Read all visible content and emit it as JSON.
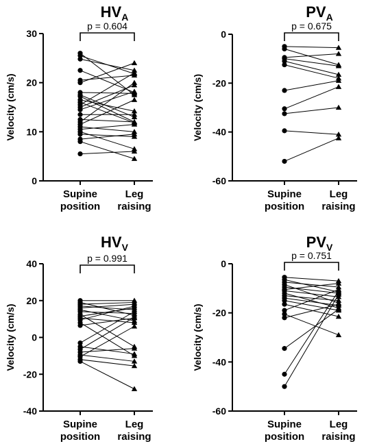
{
  "chart_data": [
    {
      "type": "scatter",
      "title": "HV",
      "title_subscript": "A",
      "ylabel": "Velocity (cm/s)",
      "ylim": [
        0,
        30
      ],
      "yticks": [
        "0",
        "10",
        "20",
        "30"
      ],
      "categories": [
        "Supine position",
        "Leg raising"
      ],
      "category_lines": [
        [
          "Supine",
          "position"
        ],
        [
          "Leg",
          "raising"
        ]
      ],
      "p_value": "p = 0.604",
      "marker_colors": [
        "#000000",
        "#000000"
      ],
      "pairs": [
        [
          26.0,
          17.5
        ],
        [
          25.5,
          21.8
        ],
        [
          24.8,
          22.5
        ],
        [
          22.5,
          18.0
        ],
        [
          20.5,
          21.5
        ],
        [
          20.0,
          24.0
        ],
        [
          18.0,
          17.8
        ],
        [
          17.5,
          13.0
        ],
        [
          17.2,
          12.0
        ],
        [
          16.5,
          14.2
        ],
        [
          16.0,
          11.8
        ],
        [
          15.5,
          22.0
        ],
        [
          15.0,
          19.5
        ],
        [
          14.5,
          18.2
        ],
        [
          13.5,
          13.5
        ],
        [
          12.5,
          12.0
        ],
        [
          12.0,
          20.0
        ],
        [
          11.5,
          16.5
        ],
        [
          11.0,
          10.0
        ],
        [
          10.5,
          11.5
        ],
        [
          10.0,
          6.5
        ],
        [
          9.5,
          9.0
        ],
        [
          8.5,
          9.5
        ],
        [
          8.0,
          4.5
        ],
        [
          5.5,
          6.0
        ]
      ]
    },
    {
      "type": "scatter",
      "title": "PV",
      "title_subscript": "A",
      "ylabel": "Velocity (cm/s)",
      "ylim": [
        -60,
        0
      ],
      "yticks": [
        "-60",
        "-40",
        "-20",
        "0"
      ],
      "categories": [
        "Supine position",
        "Leg raising"
      ],
      "category_lines": [
        [
          "Supine",
          "position"
        ],
        [
          "Leg",
          "raising"
        ]
      ],
      "p_value": "p = 0.675",
      "marker_colors": [
        "#000000",
        "#000000"
      ],
      "pairs": [
        [
          -5.0,
          -5.5
        ],
        [
          -6.0,
          -12.5
        ],
        [
          -9.5,
          -8.0
        ],
        [
          -10.0,
          -13.0
        ],
        [
          -11.0,
          -16.5
        ],
        [
          -12.5,
          -18.0
        ],
        [
          -23.0,
          -19.0
        ],
        [
          -30.5,
          -21.5
        ],
        [
          -32.5,
          -30.0
        ],
        [
          -39.5,
          -41.0
        ],
        [
          -52.0,
          -42.5
        ]
      ]
    },
    {
      "type": "scatter",
      "title": "HV",
      "title_subscript": "V",
      "ylabel": "Velocity (cm/s)",
      "ylim": [
        -40,
        40
      ],
      "yticks": [
        "-40",
        "-20",
        "0",
        "20",
        "40"
      ],
      "categories": [
        "Supine position",
        "Leg raising"
      ],
      "category_lines": [
        [
          "Supine",
          "position"
        ],
        [
          "Leg",
          "raising"
        ]
      ],
      "p_value": "p = 0.991",
      "marker_colors": [
        "#000000",
        "#000000"
      ],
      "pairs": [
        [
          20.0,
          20.0
        ],
        [
          19.0,
          12.0
        ],
        [
          18.0,
          19.0
        ],
        [
          17.0,
          15.0
        ],
        [
          16.0,
          18.0
        ],
        [
          15.0,
          9.0
        ],
        [
          14.0,
          13.0
        ],
        [
          12.5,
          -5.0
        ],
        [
          11.5,
          16.0
        ],
        [
          10.5,
          8.0
        ],
        [
          9.5,
          17.0
        ],
        [
          8.0,
          -10.0
        ],
        [
          6.5,
          10.5
        ],
        [
          -3.0,
          14.0
        ],
        [
          -5.0,
          -9.0
        ],
        [
          -6.5,
          11.0
        ],
        [
          -8.0,
          -6.0
        ],
        [
          -9.5,
          -13.0
        ],
        [
          -10.5,
          6.0
        ],
        [
          -12.0,
          -15.5
        ],
        [
          -13.0,
          -28.0
        ]
      ]
    },
    {
      "type": "scatter",
      "title": "PV",
      "title_subscript": "V",
      "ylabel": "Velocity (cm/s)",
      "ylim": [
        -60,
        0
      ],
      "yticks": [
        "-60",
        "-40",
        "-20",
        "0"
      ],
      "categories": [
        "Supine position",
        "Leg raising"
      ],
      "category_lines": [
        [
          "Supine",
          "position"
        ],
        [
          "Leg",
          "raising"
        ]
      ],
      "p_value": "p = 0.751",
      "marker_colors": [
        "#000000",
        "#000000"
      ],
      "pairs": [
        [
          -5.5,
          -7.0
        ],
        [
          -6.5,
          -11.5
        ],
        [
          -7.5,
          -9.5
        ],
        [
          -8.5,
          -16.0
        ],
        [
          -9.5,
          -12.0
        ],
        [
          -10.5,
          -8.0
        ],
        [
          -11.0,
          -13.5
        ],
        [
          -12.0,
          -18.0
        ],
        [
          -13.0,
          -15.0
        ],
        [
          -14.0,
          -17.0
        ],
        [
          -15.0,
          -19.0
        ],
        [
          -16.5,
          -21.5
        ],
        [
          -19.0,
          -10.5
        ],
        [
          -20.5,
          -29.0
        ],
        [
          -22.0,
          -16.5
        ],
        [
          -34.5,
          -18.5
        ],
        [
          -45.0,
          -11.0
        ],
        [
          -50.0,
          -12.5
        ]
      ]
    }
  ]
}
